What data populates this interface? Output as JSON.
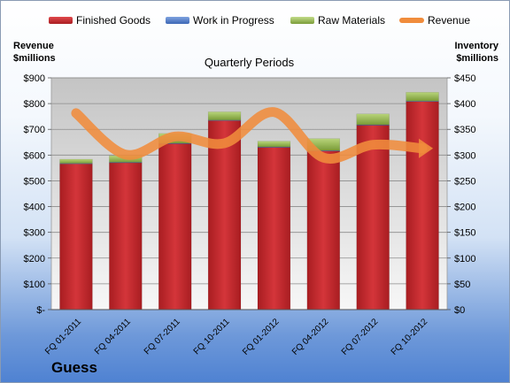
{
  "chart_data": {
    "type": "bar",
    "subtitle": "Quarterly Periods",
    "company": "Guess",
    "categories": [
      "FQ 01-2011",
      "FQ 04-2011",
      "FQ 07-2011",
      "FQ 10-2011",
      "FQ 01-2012",
      "FQ 04-2012",
      "FQ 07-2012",
      "FQ 10-2012"
    ],
    "y_left": {
      "label": "Revenue\n$millions",
      "range": [
        0,
        900
      ],
      "ticks": [
        "$-",
        "$100",
        "$200",
        "$300",
        "$400",
        "$500",
        "$600",
        "$700",
        "$800",
        "$900"
      ]
    },
    "y_right": {
      "label": "Inventory\n$millions",
      "range": [
        0,
        450
      ],
      "ticks": [
        "$0",
        "$50",
        "$100",
        "$150",
        "$200",
        "$250",
        "$300",
        "$350",
        "$400",
        "$450"
      ]
    },
    "series": [
      {
        "name": "Finished Goods",
        "axis": "right",
        "stacked": true,
        "color": "#c0262a",
        "values": [
          283,
          285,
          322,
          367,
          315,
          308,
          358,
          404
        ]
      },
      {
        "name": "Work in Progress",
        "axis": "right",
        "stacked": true,
        "color": "#4a78c6",
        "values": [
          1,
          1,
          1,
          1,
          1,
          1,
          1,
          1
        ]
      },
      {
        "name": "Raw Materials",
        "axis": "right",
        "stacked": true,
        "color": "#8fb347",
        "values": [
          8,
          13,
          19,
          16,
          11,
          23,
          21,
          17
        ]
      },
      {
        "name": "Revenue",
        "axis": "left",
        "type": "line",
        "color": "#f08c3c",
        "values": [
          763,
          602,
          672,
          646,
          767,
          590,
          640,
          626
        ]
      }
    ],
    "grid": true,
    "legend_position": "top"
  }
}
